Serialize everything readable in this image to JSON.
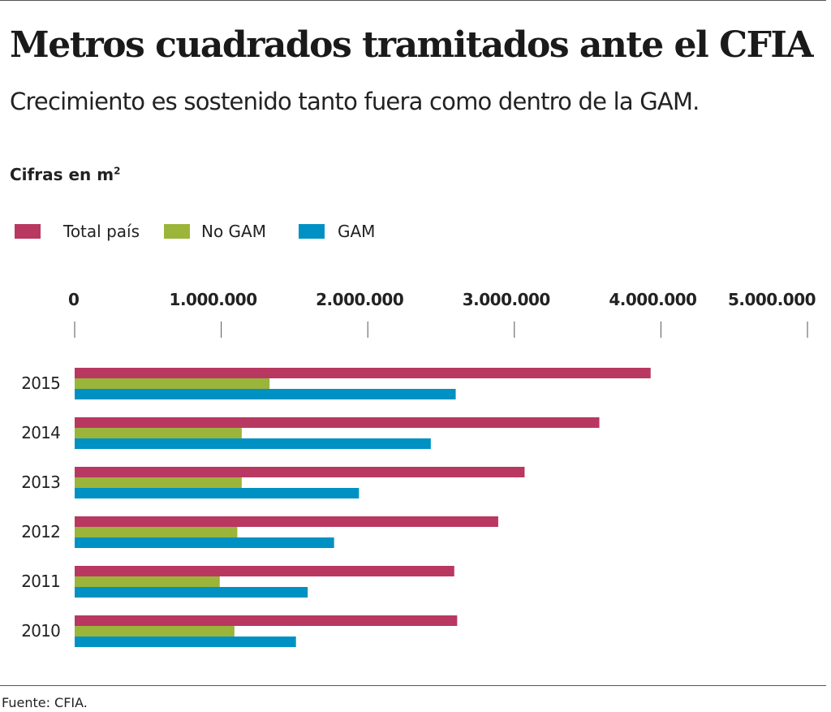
{
  "chart_data": {
    "type": "bar",
    "orientation": "horizontal",
    "title": "Metros cuadrados tramitados ante el CFIA",
    "subtitle": "Crecimiento es sostenido tanto fuera como dentro de la GAM.",
    "unit_label": "Cifras en m",
    "unit_sup": "2",
    "categories": [
      "2015",
      "2014",
      "2013",
      "2012",
      "2011",
      "2010"
    ],
    "series": [
      {
        "name": "Total país",
        "color": "#b83862",
        "values": [
          3930000,
          3580000,
          3070000,
          2890000,
          2590000,
          2610000
        ]
      },
      {
        "name": "No GAM",
        "color": "#9bb53a",
        "values": [
          1330000,
          1140000,
          1140000,
          1110000,
          990000,
          1090000
        ]
      },
      {
        "name": "GAM",
        "color": "#0091c4",
        "values": [
          2600000,
          2430000,
          1940000,
          1770000,
          1590000,
          1510000
        ]
      }
    ],
    "xlim": [
      0,
      5000000
    ],
    "xticks": [
      0,
      1000000,
      2000000,
      3000000,
      4000000,
      5000000
    ],
    "xtick_labels": [
      "0",
      "1.000.000",
      "2.000.000",
      "3.000.000",
      "4.000.000",
      "5.000.000"
    ],
    "xaxis_position": "top",
    "grid": false,
    "legend_position": "top-left",
    "source": "Fuente: CFIA."
  }
}
